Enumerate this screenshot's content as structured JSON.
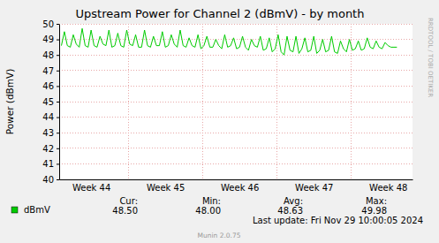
{
  "chart_data": {
    "type": "line",
    "title": "Upstream Power for Channel 2 (dBmV) - by month",
    "y_label": "Power (dBmV)",
    "x": [
      44.1,
      44.14,
      44.18,
      44.22,
      44.26,
      44.3,
      44.34,
      44.38,
      44.42,
      44.46,
      44.5,
      44.54,
      44.58,
      44.62,
      44.66,
      44.7,
      44.74,
      44.78,
      44.82,
      44.86,
      44.9,
      44.94,
      44.98,
      45.02,
      45.06,
      45.1,
      45.14,
      45.18,
      45.22,
      45.26,
      45.3,
      45.34,
      45.38,
      45.42,
      45.46,
      45.5,
      45.54,
      45.58,
      45.62,
      45.66,
      45.7,
      45.74,
      45.78,
      45.82,
      45.86,
      45.9,
      45.94,
      45.98,
      46.02,
      46.06,
      46.1,
      46.14,
      46.18,
      46.22,
      46.26,
      46.3,
      46.34,
      46.38,
      46.42,
      46.46,
      46.5,
      46.54,
      46.58,
      46.62,
      46.66,
      46.7,
      46.74,
      46.78,
      46.82,
      46.86,
      46.9,
      46.94,
      46.98,
      47.02,
      47.06,
      47.1,
      47.14,
      47.18,
      47.22,
      47.26,
      47.3,
      47.34,
      47.38,
      47.42,
      47.46,
      47.5,
      47.54,
      47.58,
      47.62,
      47.66,
      47.7,
      47.74,
      47.78,
      47.82,
      47.86,
      47.9,
      47.94,
      47.98,
      48.02,
      48.06,
      48.1,
      48.14,
      48.18,
      48.22,
      48.26,
      48.3,
      48.34,
      48.38,
      48.42,
      48.46,
      48.5,
      48.54,
      48.58,
      48.62
    ],
    "series": [
      {
        "name": "dBmV",
        "color": "#00cc00",
        "values": [
          48.6,
          49.5,
          48.6,
          48.5,
          49.3,
          48.7,
          48.5,
          49.7,
          48.6,
          48.5,
          49.6,
          48.6,
          48.5,
          49.2,
          48.7,
          48.6,
          49.6,
          48.5,
          48.6,
          49.4,
          48.6,
          48.5,
          49.6,
          48.7,
          48.6,
          49.3,
          48.5,
          48.5,
          49.6,
          48.6,
          48.5,
          49.2,
          48.6,
          48.6,
          49.5,
          48.5,
          48.6,
          49.3,
          48.7,
          48.5,
          49.6,
          48.6,
          48.5,
          49.1,
          48.6,
          48.5,
          49.3,
          48.4,
          48.6,
          49.2,
          48.5,
          48.5,
          49.0,
          48.6,
          48.4,
          49.3,
          48.5,
          48.6,
          49.1,
          48.4,
          48.5,
          49.2,
          48.5,
          48.3,
          49.0,
          48.6,
          48.5,
          49.2,
          48.3,
          48.4,
          49.1,
          48.2,
          48.4,
          49.3,
          48.2,
          48.0,
          49.2,
          48.3,
          48.2,
          49.2,
          48.1,
          48.4,
          49.1,
          48.2,
          48.3,
          49.2,
          48.1,
          48.3,
          49.0,
          48.2,
          48.3,
          49.2,
          48.2,
          48.1,
          48.9,
          48.4,
          48.2,
          49.0,
          48.3,
          48.4,
          48.9,
          48.3,
          48.4,
          49.1,
          48.5,
          48.4,
          48.9,
          48.5,
          48.4,
          48.8,
          48.6,
          48.5,
          48.5,
          48.5
        ],
        "stats": [
          {
            "name": "Cur:",
            "value": 48.5,
            "label": "48.50"
          },
          {
            "name": "Min:",
            "value": 48.0,
            "label": "48.00"
          },
          {
            "name": "Avg:",
            "value": 48.63,
            "label": "48.63"
          },
          {
            "name": "Max:",
            "value": 49.98,
            "label": "49.98"
          }
        ]
      }
    ],
    "xlim": [
      44.07,
      48.83
    ],
    "xticks": [
      {
        "value": 44.5,
        "label": "Week 44"
      },
      {
        "value": 45.5,
        "label": "Week 45"
      },
      {
        "value": 46.5,
        "label": "Week 46"
      },
      {
        "value": 47.5,
        "label": "Week 47"
      },
      {
        "value": 48.5,
        "label": "Week 48"
      }
    ],
    "ylim": [
      40,
      50
    ],
    "yticks": [
      40,
      41,
      42,
      43,
      44,
      45,
      46,
      47,
      48,
      49,
      50
    ],
    "grid": true,
    "annotations": [
      "Last update: Fri Nov 29 10:00:05 2024",
      "Munin 2.0.75",
      "RRDTOOL / TOBI OETIKER"
    ]
  }
}
